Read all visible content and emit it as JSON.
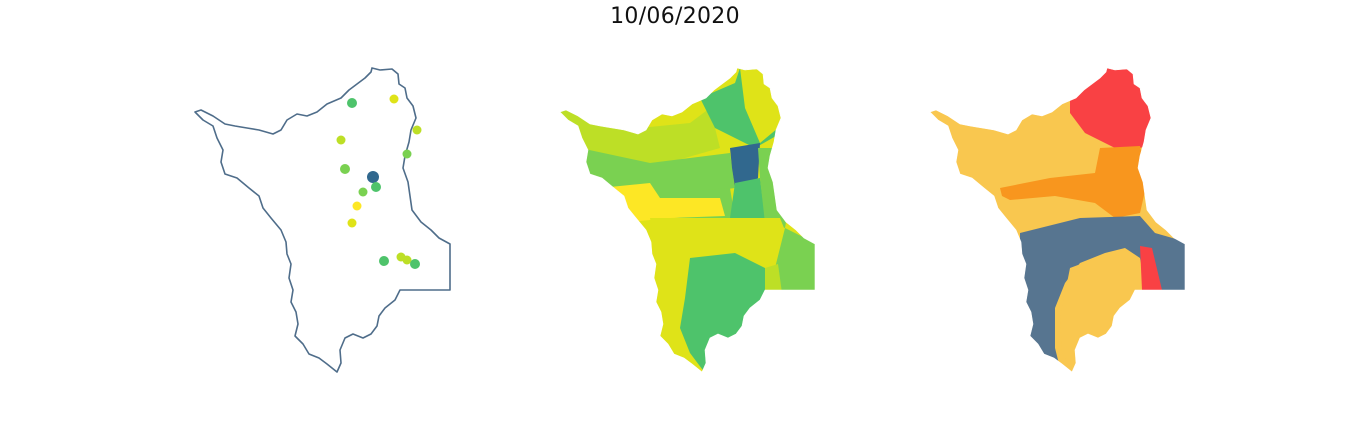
{
  "figure": {
    "title": "10/06/2020"
  },
  "colors": {
    "outline": "#4f6d8a",
    "viridis_dark_blue": "#31688e",
    "viridis_green": "#4ec36b",
    "viridis_light_green": "#7ad151",
    "viridis_yellow_green": "#bddf26",
    "viridis_yellow": "#fde725",
    "viridis_olive_yellow": "#dfe318",
    "risk_red": "#f94144",
    "risk_orange": "#f8961e",
    "risk_light_orange": "#f9c74f",
    "risk_slate": "#577590"
  },
  "panels": [
    {
      "id": "stations",
      "kind": "point-map"
    },
    {
      "id": "choropleth-viridis",
      "kind": "choropleth"
    },
    {
      "id": "choropleth-risk",
      "kind": "choropleth"
    }
  ]
}
